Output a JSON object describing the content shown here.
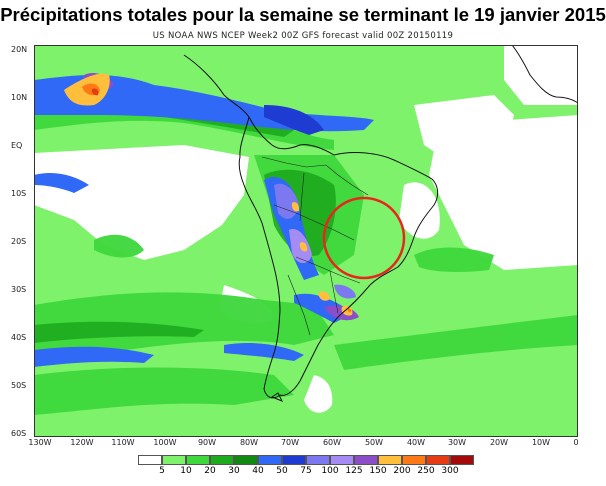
{
  "title": "Précipitations totales pour la semaine se terminant le 19 janvier 2015",
  "subtitle": "US NOAA NWS NCEP Week2 00Z GFS forecast valid 00Z 20150119",
  "lat_labels": [
    "20N",
    "10N",
    "EQ",
    "10S",
    "20S",
    "30S",
    "40S",
    "50S",
    "60S"
  ],
  "lon_labels": [
    "130W",
    "120W",
    "110W",
    "100W",
    "90W",
    "80W",
    "70W",
    "60W",
    "50W",
    "40W",
    "30W",
    "20W",
    "10W",
    "0"
  ],
  "legend": {
    "levels": [
      "5",
      "10",
      "20",
      "30",
      "40",
      "50",
      "75",
      "100",
      "125",
      "150",
      "200",
      "250",
      "300"
    ],
    "colors": [
      "#ffffff",
      "#7ef26b",
      "#3ed83c",
      "#1daa1d",
      "#108a10",
      "#2f69f5",
      "#1e3cd2",
      "#7b78f0",
      "#a58cf5",
      "#8c4ec8",
      "#ffbe3c",
      "#ff7a14",
      "#e63c14",
      "#a50a0a"
    ]
  },
  "annotation": {
    "type": "red-circle",
    "region": "southern Brazil / Paraná-São Paulo"
  }
}
